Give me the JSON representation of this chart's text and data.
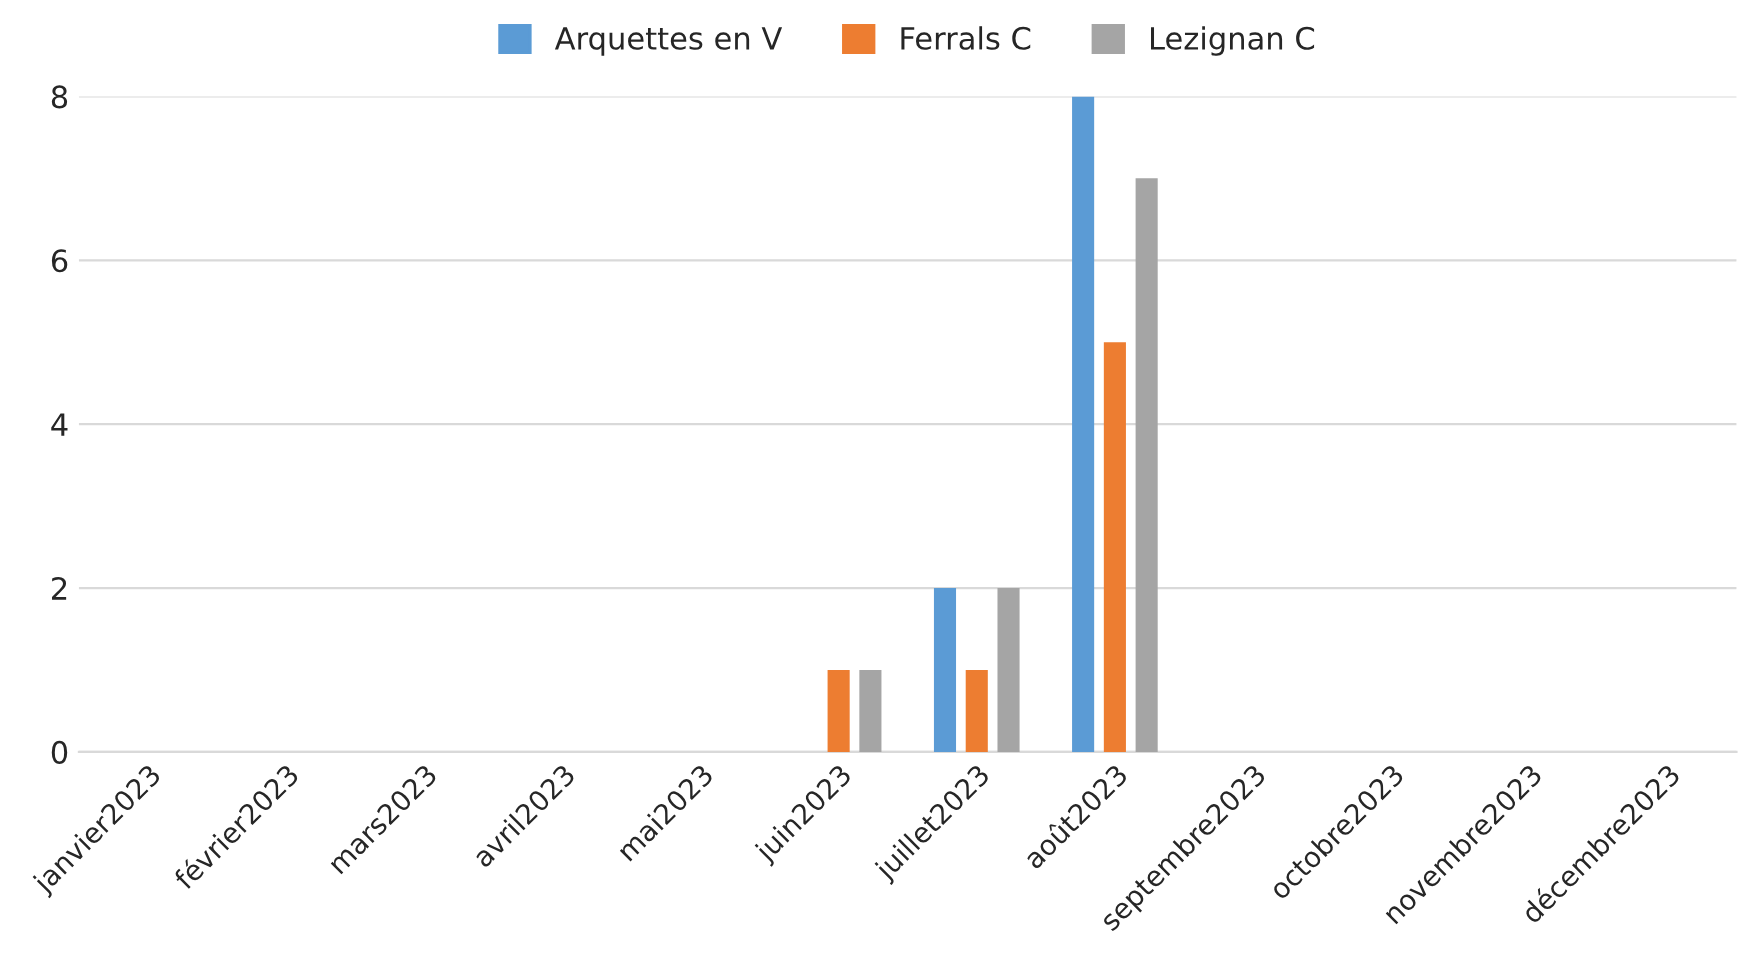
{
  "chart_data": {
    "type": "bar",
    "categories": [
      "janvier2023",
      "février2023",
      "mars2023",
      "avril2023",
      "mai2023",
      "juin2023",
      "juillet2023",
      "août2023",
      "septembre2023",
      "octobre2023",
      "novembre2023",
      "décembre2023"
    ],
    "series": [
      {
        "name": "Arquettes en V",
        "color": "#5b9bd5",
        "values": [
          0,
          0,
          0,
          0,
          0,
          0,
          2,
          8,
          0,
          0,
          0,
          0
        ]
      },
      {
        "name": "Ferrals C",
        "color": "#ed7d31",
        "values": [
          0,
          0,
          0,
          0,
          0,
          1,
          1,
          5,
          0,
          0,
          0,
          0
        ]
      },
      {
        "name": "Lezignan C",
        "color": "#a5a5a5",
        "values": [
          0,
          0,
          0,
          0,
          0,
          1,
          2,
          7,
          0,
          0,
          0,
          0
        ]
      }
    ],
    "ylim": [
      0,
      8
    ],
    "yticks": [
      0,
      2,
      4,
      6,
      8
    ],
    "grid": "y",
    "legend": "top"
  }
}
